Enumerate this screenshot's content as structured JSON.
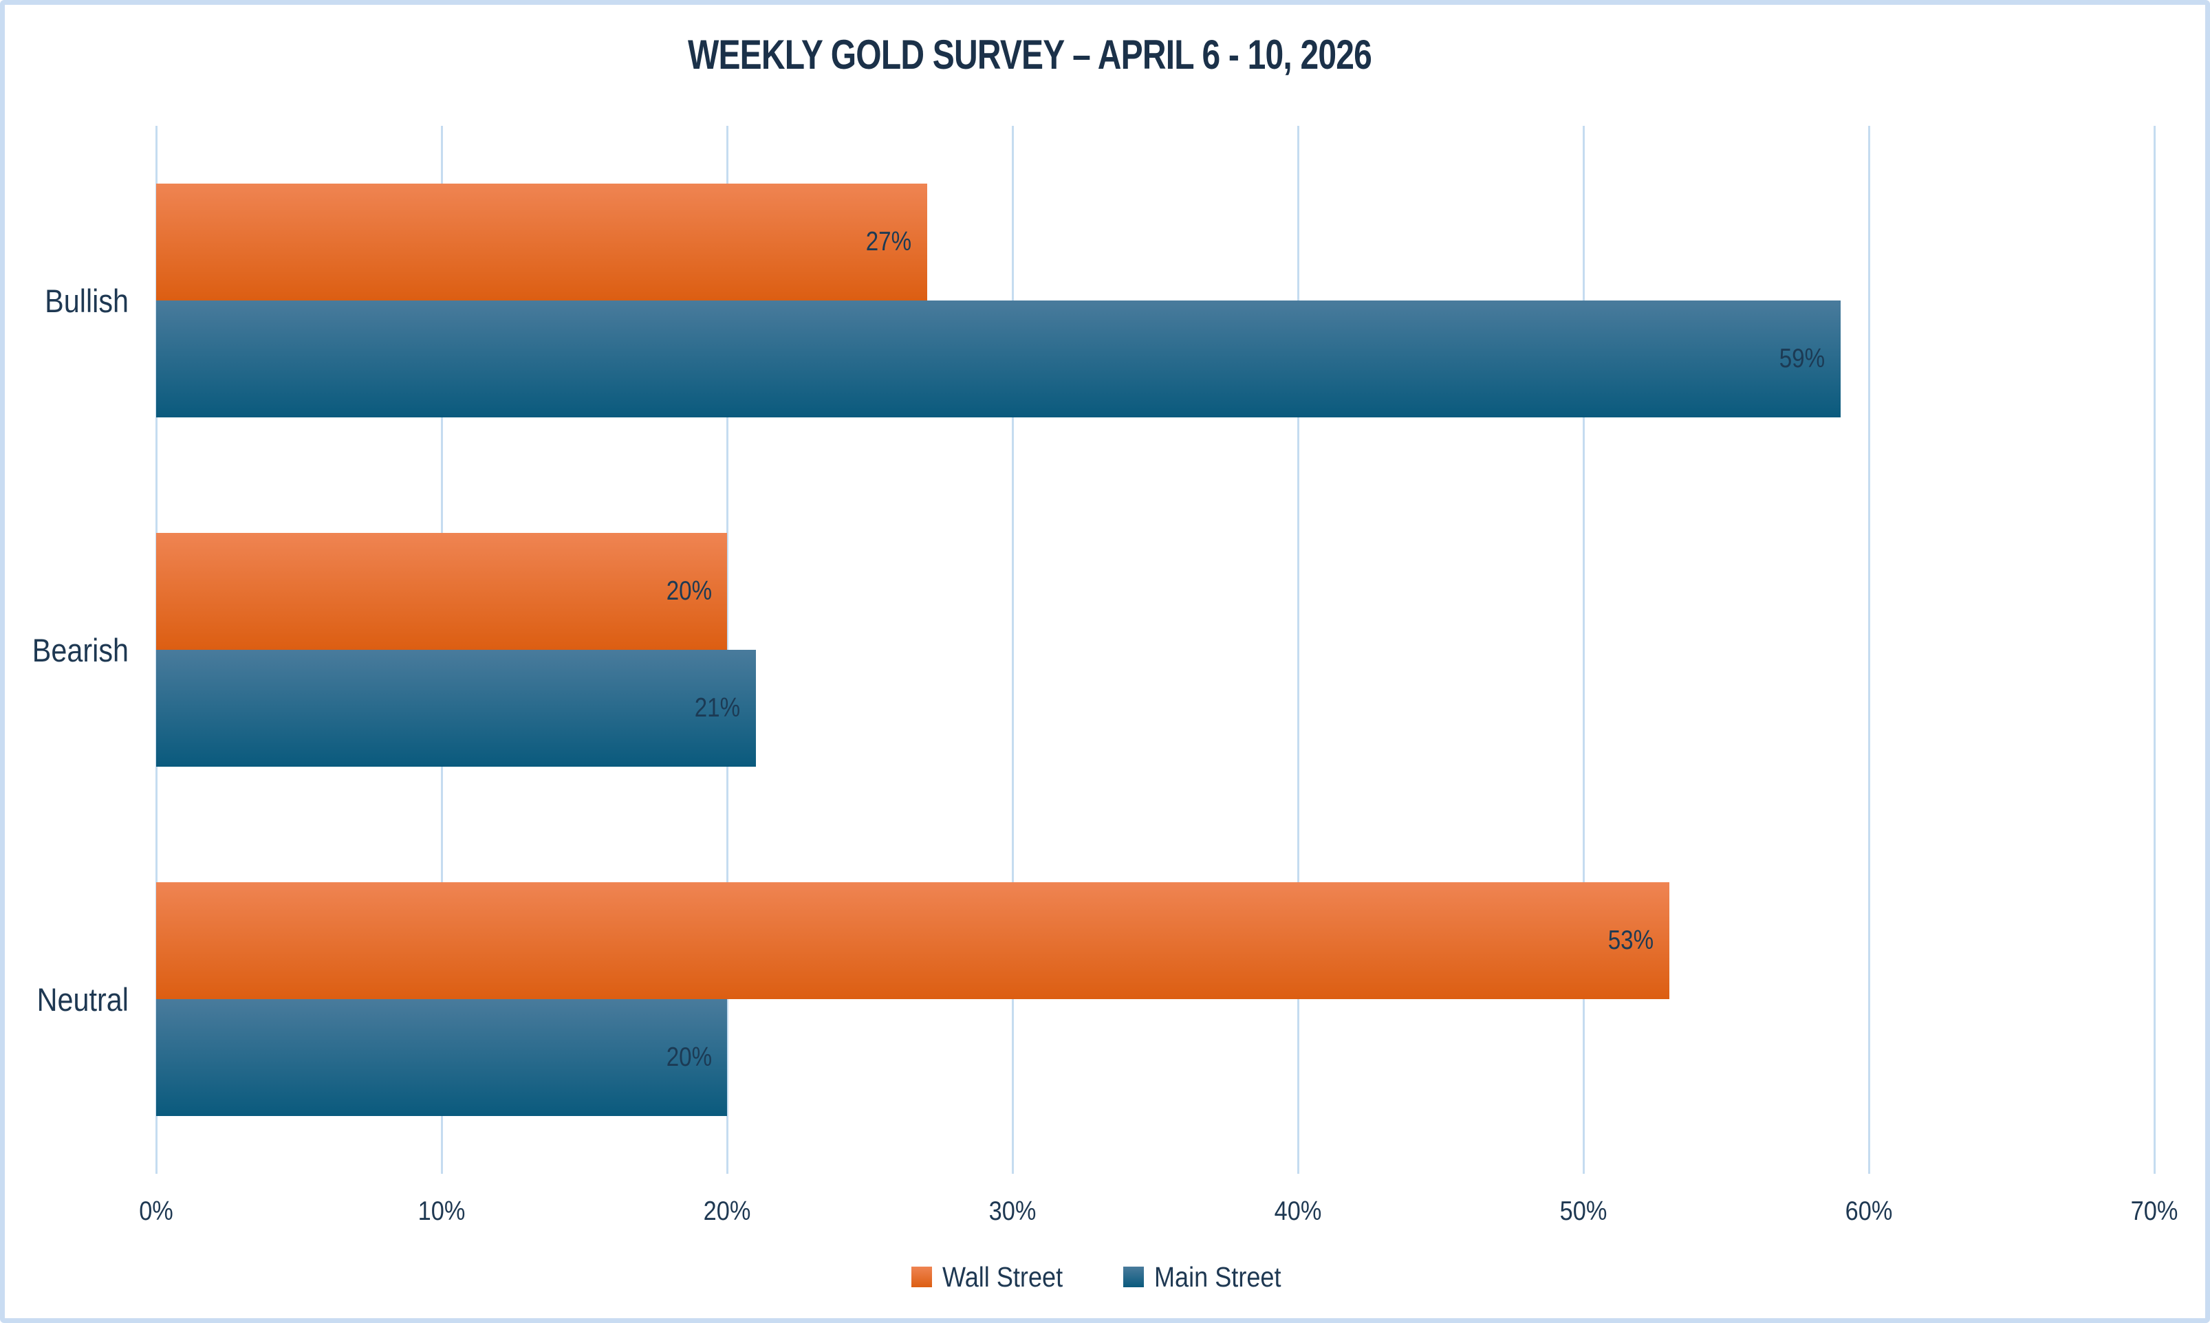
{
  "title": "WEEKLY GOLD SURVEY – APRIL 6 - 10, 2026",
  "chart_data": {
    "type": "bar",
    "orientation": "horizontal",
    "title": "WEEKLY GOLD SURVEY – APRIL 6 - 10, 2026",
    "categories": [
      "Bullish",
      "Bearish",
      "Neutral"
    ],
    "series": [
      {
        "name": "Wall Street",
        "values": [
          27,
          20,
          53
        ]
      },
      {
        "name": "Main Street",
        "values": [
          59,
          21,
          20
        ]
      }
    ],
    "value_suffix": "%",
    "data_label_position": "inside-end",
    "xlim": [
      0,
      70
    ],
    "x_ticks": [
      "0%",
      "10%",
      "20%",
      "30%",
      "40%",
      "50%",
      "60%",
      "70%"
    ],
    "grid": true,
    "legend_position": "bottom"
  },
  "legend": {
    "items": [
      "Wall Street",
      "Main Street"
    ]
  },
  "colors": {
    "wall_street_top": "#ef8452",
    "wall_street_bottom": "#dc5e12",
    "main_street_top": "#497b9c",
    "main_street_bottom": "#0a5a7d",
    "title_text": "#1b3149",
    "axis_text": "#1e3852",
    "bar_label_text": "#1c3a54",
    "gridline": "#c5dcf0",
    "frame_border": "#c9dcf2",
    "background": "#ffffff"
  }
}
